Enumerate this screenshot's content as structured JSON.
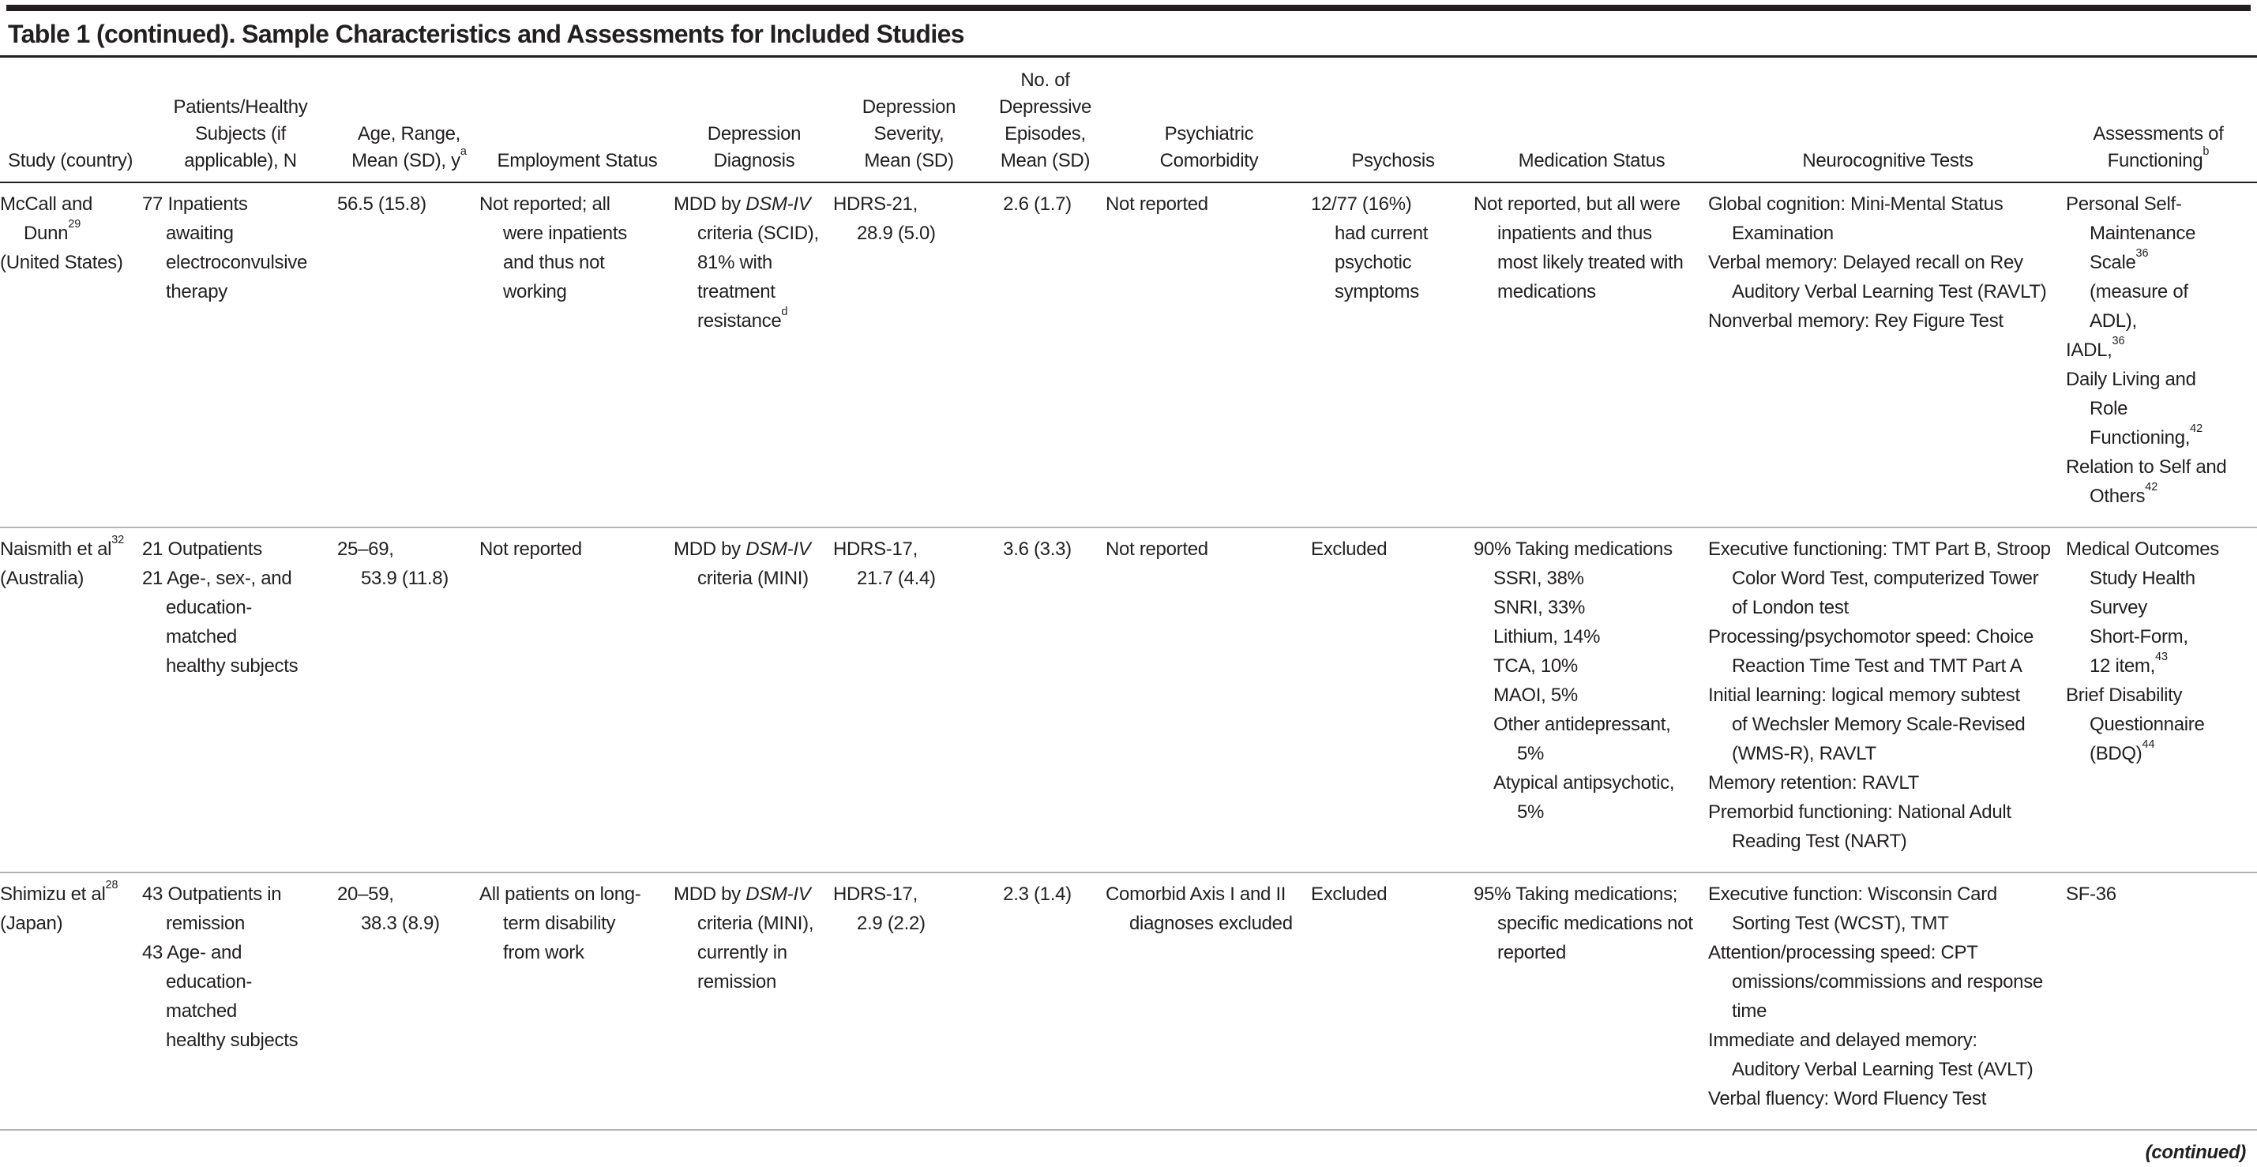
{
  "title": "Table 1 (continued). Sample Characteristics and Assessments for Included Studies",
  "footer": {
    "continued": "(continued)"
  },
  "colors": {
    "text": "#231f20",
    "rule_dark": "#231f20",
    "rule_light": "#b3b3b3",
    "background": "#ffffff"
  },
  "table": {
    "columns": [
      {
        "key": "study",
        "label": "Study (country)",
        "align": "left"
      },
      {
        "key": "patients",
        "label": "Patients/Healthy\nSubjects (if\napplicable), N"
      },
      {
        "key": "age",
        "label": "Age, Range,\nMean (SD), y^{a}"
      },
      {
        "key": "employment",
        "label": "Employment Status"
      },
      {
        "key": "diagnosis",
        "label": "Depression\nDiagnosis"
      },
      {
        "key": "severity",
        "label": "Depression\nSeverity,\nMean (SD)"
      },
      {
        "key": "episodes",
        "label": "No. of\nDepressive\nEpisodes,\nMean (SD)",
        "align": "center"
      },
      {
        "key": "comorbidity",
        "label": "Psychiatric\nComorbidity"
      },
      {
        "key": "psychosis",
        "label": "Psychosis"
      },
      {
        "key": "medication",
        "label": "Medication Status"
      },
      {
        "key": "neuro",
        "label": "Neurocognitive Tests"
      },
      {
        "key": "functioning",
        "label": "Assessments of\nFunctioning^{b}"
      }
    ],
    "rows": [
      {
        "study": [
          {
            "t": "McCall and\nDunn^{29}"
          },
          {
            "t": "(United States)"
          }
        ],
        "patients": [
          {
            "t": "77 Inpatients\nawaiting\nelectroconvulsive\ntherapy"
          }
        ],
        "age": [
          {
            "t": "56.5 (15.8)"
          }
        ],
        "employment": [
          {
            "t": "Not reported; all\nwere inpatients\nand thus not\nworking"
          }
        ],
        "diagnosis": [
          {
            "t": "MDD by *DSM-IV*\ncriteria (SCID),\n81% with\ntreatment\nresistance^{d}"
          }
        ],
        "severity": [
          {
            "t": "HDRS-21,\n28.9 (5.0)"
          }
        ],
        "episodes": [
          {
            "t": "2.6 (1.7)"
          }
        ],
        "comorbidity": [
          {
            "t": "Not reported"
          }
        ],
        "psychosis": [
          {
            "t": "12/77 (16%)\nhad current\npsychotic\nsymptoms"
          }
        ],
        "medication": [
          {
            "t": "Not reported, but all were\ninpatients and thus\nmost likely treated with\nmedications"
          }
        ],
        "neuro": [
          {
            "t": "Global cognition: Mini-Mental Status\nExamination"
          },
          {
            "t": "Verbal memory: Delayed recall on Rey\nAuditory Verbal Learning Test (RAVLT)"
          },
          {
            "t": "Nonverbal memory: Rey Figure Test"
          }
        ],
        "functioning": [
          {
            "t": "Personal Self-\nMaintenance Scale^{36}\n(measure of ADL),"
          },
          {
            "t": "IADL,^{36}"
          },
          {
            "t": "Daily Living and Role\nFunctioning,^{42}"
          },
          {
            "t": "Relation to Self and\nOthers^{42}"
          }
        ]
      },
      {
        "study": [
          {
            "t": "Naismith et al^{32}"
          },
          {
            "t": "(Australia)"
          }
        ],
        "patients": [
          {
            "t": "21 Outpatients"
          },
          {
            "t": "21 Age-, sex-, and\neducation-matched\nhealthy subjects"
          }
        ],
        "age": [
          {
            "t": "25–69,\n53.9 (11.8)"
          }
        ],
        "employment": [
          {
            "t": "Not reported"
          }
        ],
        "diagnosis": [
          {
            "t": "MDD by *DSM-IV*\ncriteria (MINI)"
          }
        ],
        "severity": [
          {
            "t": "HDRS-17,\n21.7 (4.4)"
          }
        ],
        "episodes": [
          {
            "t": "3.6 (3.3)"
          }
        ],
        "comorbidity": [
          {
            "t": "Not reported"
          }
        ],
        "psychosis": [
          {
            "t": "Excluded"
          }
        ],
        "medication": [
          {
            "t": "90% Taking medications"
          },
          {
            "t": "SSRI, 38%",
            "ind": 1
          },
          {
            "t": "SNRI, 33%",
            "ind": 1
          },
          {
            "t": "Lithium, 14%",
            "ind": 1
          },
          {
            "t": "TCA, 10%",
            "ind": 1
          },
          {
            "t": "MAOI, 5%",
            "ind": 1
          },
          {
            "t": "Other antidepressant,\n5%",
            "ind": 1
          },
          {
            "t": "Atypical antipsychotic,\n5%",
            "ind": 1
          }
        ],
        "neuro": [
          {
            "t": "Executive functioning: TMT Part B, Stroop\nColor Word Test, computerized Tower\nof London test"
          },
          {
            "t": "Processing/psychomotor speed: Choice\nReaction Time Test and TMT Part A"
          },
          {
            "t": "Initial learning: logical memory subtest\nof Wechsler Memory Scale-Revised\n(WMS-R), RAVLT"
          },
          {
            "t": "Memory retention: RAVLT"
          },
          {
            "t": "Premorbid functioning: National Adult\nReading Test (NART)"
          }
        ],
        "functioning": [
          {
            "t": "Medical Outcomes\nStudy Health Survey\nShort-Form,\n12 item,^{43}"
          },
          {
            "t": "Brief Disability\nQuestionnaire\n(BDQ)^{44}"
          }
        ]
      },
      {
        "study": [
          {
            "t": "Shimizu et al^{28}"
          },
          {
            "t": "(Japan)"
          }
        ],
        "patients": [
          {
            "t": "43 Outpatients in\nremission"
          },
          {
            "t": "43 Age- and\neducation-matched\nhealthy subjects"
          }
        ],
        "age": [
          {
            "t": "20–59,\n38.3 (8.9)"
          }
        ],
        "employment": [
          {
            "t": "All patients on long-\nterm disability\nfrom work"
          }
        ],
        "diagnosis": [
          {
            "t": "MDD by *DSM-IV*\ncriteria (MINI),\ncurrently in\nremission"
          }
        ],
        "severity": [
          {
            "t": "HDRS-17,\n2.9 (2.2)"
          }
        ],
        "episodes": [
          {
            "t": "2.3 (1.4)"
          }
        ],
        "comorbidity": [
          {
            "t": "Comorbid Axis I and II\ndiagnoses excluded"
          }
        ],
        "psychosis": [
          {
            "t": "Excluded"
          }
        ],
        "medication": [
          {
            "t": "95% Taking medications;\nspecific medications not\nreported"
          }
        ],
        "neuro": [
          {
            "t": "Executive function: Wisconsin Card\nSorting Test (WCST), TMT"
          },
          {
            "t": "Attention/processing speed: CPT\nomissions/commissions and response\ntime"
          },
          {
            "t": "Immediate and delayed memory:\nAuditory Verbal Learning Test (AVLT)"
          },
          {
            "t": "Verbal fluency: Word Fluency Test"
          }
        ],
        "functioning": [
          {
            "t": "SF-36"
          }
        ]
      }
    ]
  }
}
